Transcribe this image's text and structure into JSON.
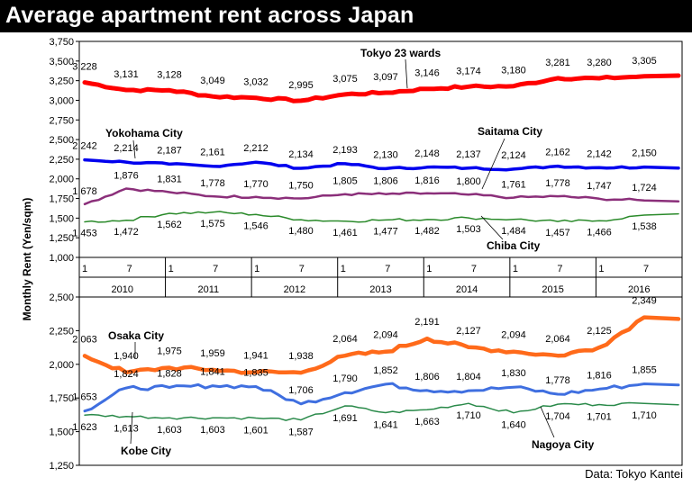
{
  "header": {
    "title": "Average apartment rent across Japan"
  },
  "source": "Data: Tokyo Kantei",
  "colors": {
    "tokyo": "#ff0000",
    "yokohama": "#0000ee",
    "saitama": "#8b2f7a",
    "chiba": "#2a8a2a",
    "osaka": "#ff6a1a",
    "kobe": "#3f6fe0",
    "nagoya": "#2a8a4a"
  },
  "chart_data": [
    {
      "type": "line",
      "panel": "top",
      "ylabel": "Monthly Rent (Yen/sqm)",
      "ylim": [
        1000,
        3750
      ],
      "yticks": [
        "1,000",
        "1,250",
        "1,500",
        "1,750",
        "2,000",
        "2,250",
        "2,500",
        "2,750",
        "3,000",
        "3,250",
        "3,500",
        "3,750"
      ],
      "x_axis": {
        "months": [
          "1",
          "7",
          "1",
          "7",
          "1",
          "7",
          "1",
          "7",
          "1",
          "7",
          "1",
          "7",
          "1",
          "7"
        ],
        "years": [
          "2010",
          "2011",
          "2012",
          "2013",
          "2014",
          "2015",
          "2016"
        ]
      },
      "series": [
        {
          "name": "Tokyo 23 wards",
          "color_key": "tokyo",
          "values": [
            3228,
            3131,
            3128,
            3049,
            3032,
            2995,
            3075,
            3097,
            3146,
            3174,
            3180,
            3281,
            3280,
            3305
          ],
          "labels": [
            "3,228",
            "3,131",
            "3,128",
            "3,049",
            "3,032",
            "2,995",
            "3,075",
            "3,097",
            "3,146",
            "3,174",
            "3,180",
            "3,281",
            "3,280",
            "3,305"
          ]
        },
        {
          "name": "Yokohama City",
          "color_key": "yokohama",
          "values": [
            2242,
            2214,
            2187,
            2161,
            2212,
            2134,
            2193,
            2130,
            2148,
            2137,
            2124,
            2162,
            2142,
            2150
          ],
          "labels": [
            "2,242",
            "2,214",
            "2,187",
            "2,161",
            "2,212",
            "2,134",
            "2,193",
            "2,130",
            "2,148",
            "2,137",
            "2,124",
            "2,162",
            "2,142",
            "2,150"
          ]
        },
        {
          "name": "Saitama City",
          "color_key": "saitama",
          "values": [
            1678,
            1876,
            1831,
            1778,
            1770,
            1750,
            1805,
            1806,
            1816,
            1800,
            1761,
            1778,
            1747,
            1724
          ],
          "labels": [
            "1,678",
            "1,876",
            "1,831",
            "1,778",
            "1,770",
            "1,750",
            "1,805",
            "1,806",
            "1,816",
            "1,800",
            "1,761",
            "1,778",
            "1,747",
            "1,724"
          ]
        },
        {
          "name": "Chiba City",
          "color_key": "chiba",
          "values": [
            1453,
            1472,
            1562,
            1575,
            1546,
            1480,
            1461,
            1477,
            1482,
            1503,
            1484,
            1457,
            1466,
            1538
          ],
          "labels": [
            "1,453",
            "1,472",
            "1,562",
            "1,575",
            "1,546",
            "1,480",
            "1,461",
            "1,477",
            "1,482",
            "1,503",
            "1,484",
            "1,457",
            "1,466",
            "1,538"
          ]
        }
      ]
    },
    {
      "type": "line",
      "panel": "bottom",
      "ylim": [
        1250,
        2500
      ],
      "yticks": [
        "1,250",
        "1,500",
        "1,750",
        "2,000",
        "2,250",
        "2,500"
      ],
      "series": [
        {
          "name": "Osaka City",
          "color_key": "osaka",
          "values": [
            2063,
            1940,
            1975,
            1959,
            1941,
            1938,
            2064,
            2094,
            2191,
            2127,
            2094,
            2064,
            2125,
            2349
          ],
          "labels": [
            "2,063",
            "1,940",
            "1,975",
            "1,959",
            "1,941",
            "1,938",
            "2,064",
            "2,094",
            "2,191",
            "2,127",
            "2,094",
            "2,064",
            "2,125",
            "2,349"
          ]
        },
        {
          "name": "Kobe City",
          "color_key": "kobe",
          "values": [
            1653,
            1824,
            1828,
            1841,
            1835,
            1706,
            1790,
            1852,
            1806,
            1804,
            1830,
            1778,
            1816,
            1855
          ],
          "labels": [
            "1,653",
            "1,824",
            "1,828",
            "1,841",
            "1,835",
            "1,706",
            "1,790",
            "1,852",
            "1,806",
            "1,804",
            "1,830",
            "1,778",
            "1,816",
            "1,855"
          ]
        },
        {
          "name": "Nagoya City",
          "color_key": "nagoya",
          "values": [
            1623,
            1613,
            1603,
            1603,
            1601,
            1587,
            1691,
            1641,
            1663,
            1710,
            1640,
            1704,
            1701,
            1710
          ],
          "labels": [
            "1,623",
            "1,613",
            "1,603",
            "1,603",
            "1,601",
            "1,587",
            "1,691",
            "1,641",
            "1,663",
            "1,710",
            "1,640",
            "1,704",
            "1,701",
            "1,710"
          ]
        }
      ]
    }
  ]
}
